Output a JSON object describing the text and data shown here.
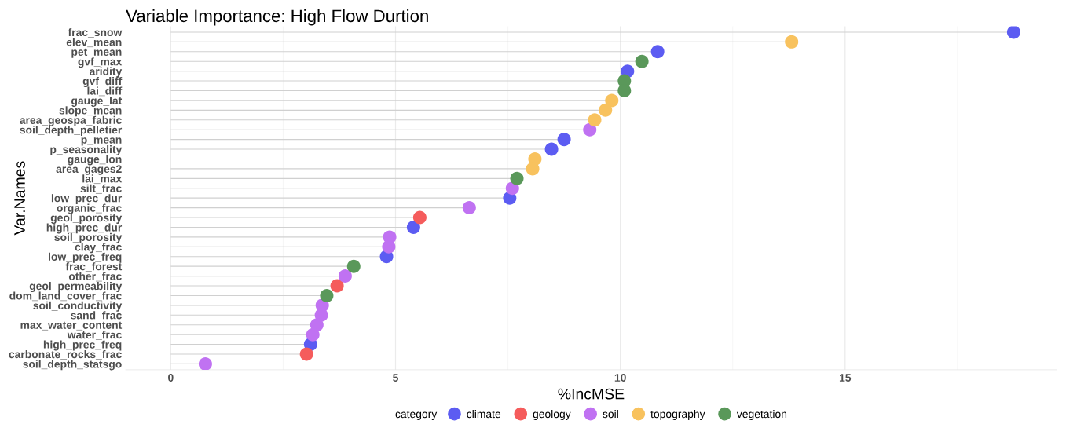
{
  "chart_data": {
    "type": "lollipop",
    "orientation": "horizontal",
    "title": "Variable Importance: High Flow Durtion",
    "xlabel": "%IncMSE",
    "ylabel": "Var.Names",
    "legend_title": "category",
    "legend": "bottom",
    "grid": "x",
    "marker": "circle",
    "categories": [
      "frac_snow",
      "elev_mean",
      "pet_mean",
      "gvf_max",
      "aridity",
      "gvf_diff",
      "lai_diff",
      "gauge_lat",
      "slope_mean",
      "area_geospa_fabric",
      "soil_depth_pelletier",
      "p_mean",
      "p_seasonality",
      "gauge_lon",
      "area_gages2",
      "lai_max",
      "silt_frac",
      "low_prec_dur",
      "organic_frac",
      "geol_porosity",
      "high_prec_dur",
      "soil_porosity",
      "clay_frac",
      "low_prec_freq",
      "frac_forest",
      "other_frac",
      "geol_permeability",
      "dom_land_cover_frac",
      "soil_conductivity",
      "sand_frac",
      "max_water_content",
      "water_frac",
      "high_prec_freq",
      "carbonate_rocks_frac",
      "soil_depth_statsgo"
    ],
    "xlim": [
      -1.0,
      19.7
    ],
    "xticks": [
      0,
      5,
      10,
      15
    ],
    "series": [
      {
        "name": "climate",
        "color": "#5c5cf2",
        "values": [
          18.75,
          null,
          10.83,
          null,
          10.16,
          null,
          null,
          null,
          null,
          null,
          null,
          8.75,
          8.47,
          null,
          null,
          null,
          null,
          7.54,
          null,
          null,
          5.4,
          null,
          null,
          4.8,
          null,
          null,
          null,
          null,
          null,
          null,
          null,
          null,
          3.11,
          null,
          null
        ]
      },
      {
        "name": "geology",
        "color": "#f55c5c",
        "values": [
          null,
          null,
          null,
          null,
          null,
          null,
          null,
          null,
          null,
          null,
          null,
          null,
          null,
          null,
          null,
          null,
          null,
          null,
          null,
          5.54,
          null,
          null,
          null,
          null,
          null,
          null,
          3.7,
          null,
          null,
          null,
          null,
          null,
          null,
          3.02,
          null
        ]
      },
      {
        "name": "soil",
        "color": "#c072f2",
        "values": [
          null,
          null,
          null,
          null,
          null,
          null,
          null,
          null,
          null,
          null,
          9.32,
          null,
          null,
          null,
          null,
          null,
          7.6,
          null,
          6.64,
          null,
          null,
          4.87,
          4.85,
          null,
          null,
          3.88,
          null,
          null,
          3.37,
          3.35,
          3.25,
          3.16,
          null,
          null,
          0.77
        ]
      },
      {
        "name": "topography",
        "color": "#f8c25e",
        "values": [
          null,
          13.81,
          null,
          null,
          null,
          null,
          null,
          9.81,
          9.67,
          9.43,
          null,
          null,
          null,
          8.1,
          8.05,
          null,
          null,
          null,
          null,
          null,
          null,
          null,
          null,
          null,
          null,
          null,
          null,
          null,
          null,
          null,
          null,
          null,
          null,
          null,
          null
        ]
      },
      {
        "name": "vegetation",
        "color": "#5a985a",
        "values": [
          null,
          null,
          null,
          10.48,
          null,
          10.09,
          10.09,
          null,
          null,
          null,
          null,
          null,
          null,
          null,
          null,
          7.7,
          null,
          null,
          null,
          null,
          null,
          null,
          null,
          null,
          4.07,
          null,
          null,
          3.47,
          null,
          null,
          null,
          null,
          null,
          null,
          null
        ]
      }
    ]
  }
}
